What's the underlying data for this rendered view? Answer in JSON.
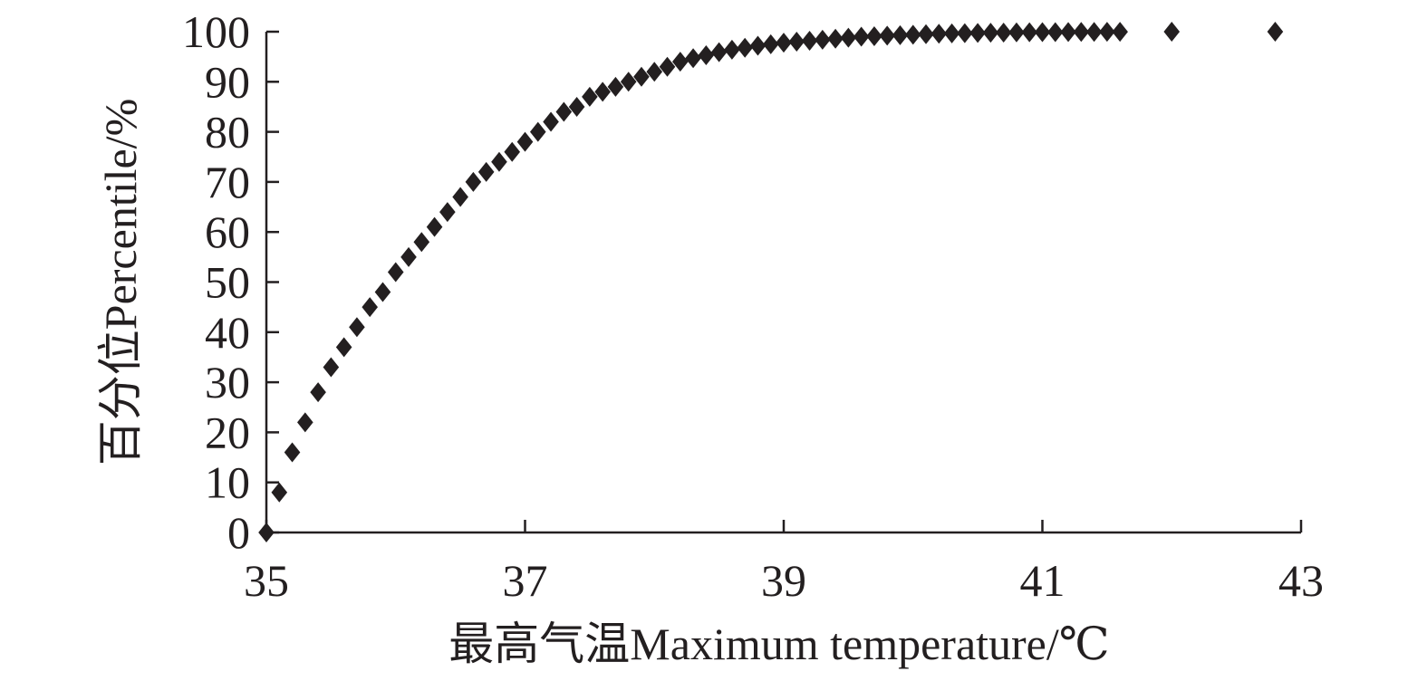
{
  "chart_data": {
    "type": "scatter",
    "title": "",
    "xlabel": "最高气温Maximum temperature/℃",
    "ylabel": "百分位Percentile/%",
    "xlim": [
      35,
      43
    ],
    "ylim": [
      0,
      100
    ],
    "x_ticks": [
      35,
      37,
      39,
      41,
      43
    ],
    "x_tick_labels": [
      "35",
      "37",
      "39",
      "41",
      "43"
    ],
    "y_ticks": [
      0,
      10,
      20,
      30,
      40,
      50,
      60,
      70,
      80,
      90,
      100
    ],
    "y_tick_labels": [
      "0",
      "10",
      "20",
      "30",
      "40",
      "50",
      "60",
      "70",
      "80",
      "90",
      "100"
    ],
    "grid": false,
    "legend": "none",
    "marker": "diamond",
    "marker_color": "#231f20",
    "series": [
      {
        "x": [
          35.0,
          35.1,
          35.2,
          35.3,
          35.4,
          35.5,
          35.6,
          35.7,
          35.8,
          35.9,
          36.0,
          36.1,
          36.2,
          36.3,
          36.4,
          36.5,
          36.6,
          36.7,
          36.8,
          36.9,
          37.0,
          37.1,
          37.2,
          37.3,
          37.4,
          37.5,
          37.6,
          37.7,
          37.8,
          37.9,
          38.0,
          38.1,
          38.2,
          38.3,
          38.4,
          38.5,
          38.6,
          38.7,
          38.8,
          38.9,
          39.0,
          39.1,
          39.2,
          39.3,
          39.4,
          39.5,
          39.6,
          39.7,
          39.8,
          39.9,
          40.0,
          40.1,
          40.2,
          40.3,
          40.4,
          40.5,
          40.6,
          40.7,
          40.8,
          40.9,
          41.0,
          41.1,
          41.2,
          41.3,
          41.4,
          41.5,
          41.6,
          42.0,
          42.8
        ],
        "values": [
          0,
          8,
          16,
          22,
          28,
          33,
          37,
          41,
          45,
          48,
          52,
          55,
          58,
          61,
          64,
          67,
          70,
          72,
          74,
          76,
          78,
          80,
          82,
          84,
          85,
          87,
          88,
          89,
          90,
          91,
          92,
          93,
          94,
          94.7,
          95.3,
          95.9,
          96.4,
          96.8,
          97.2,
          97.5,
          97.8,
          98.0,
          98.2,
          98.4,
          98.6,
          98.8,
          99.0,
          99.1,
          99.2,
          99.3,
          99.4,
          99.5,
          99.6,
          99.65,
          99.7,
          99.75,
          99.8,
          99.83,
          99.86,
          99.88,
          99.9,
          99.92,
          99.94,
          99.95,
          99.96,
          99.97,
          99.98,
          100,
          100
        ]
      }
    ]
  }
}
